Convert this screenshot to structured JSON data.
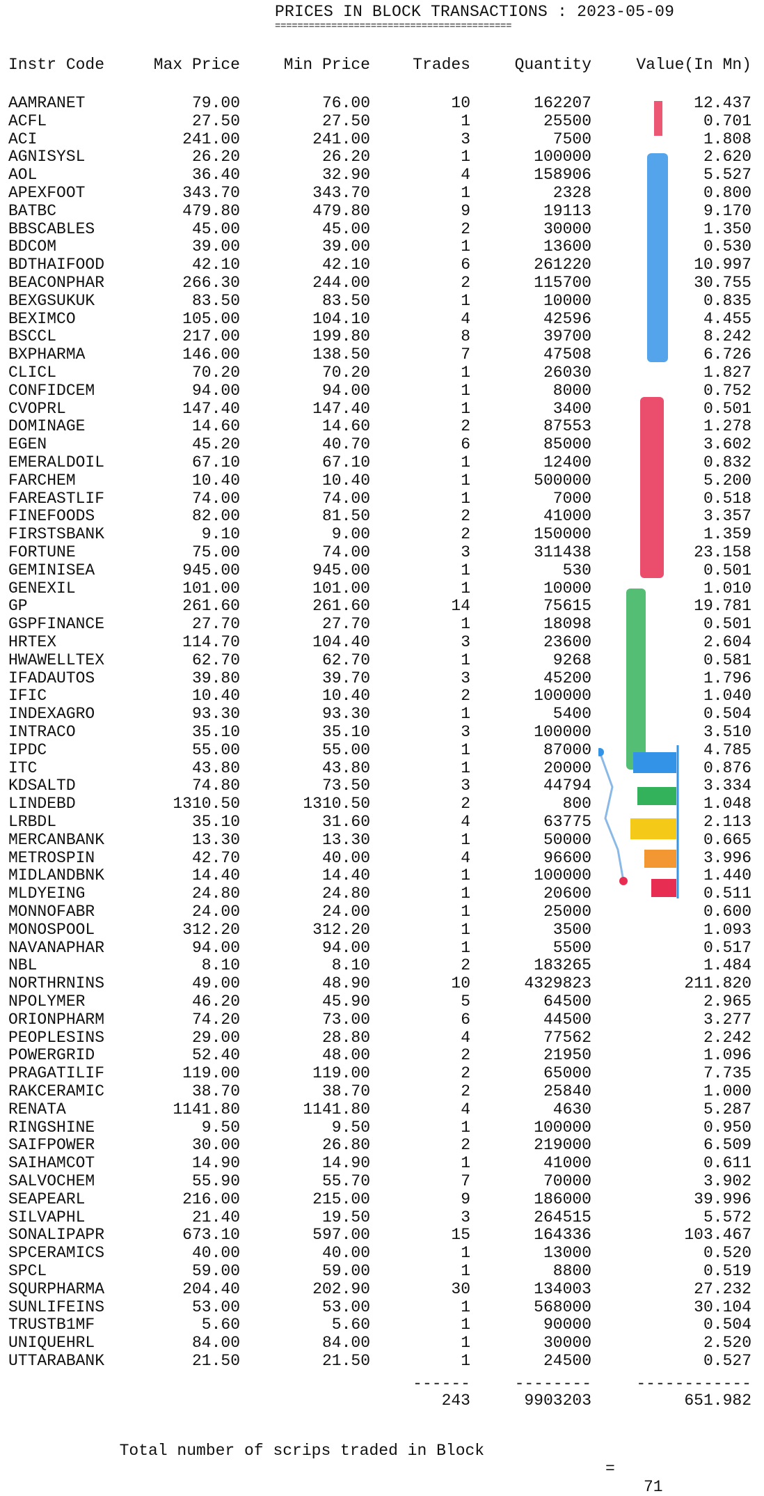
{
  "title": "PRICES IN BLOCK TRANSACTIONS : 2023-05-09",
  "title_rule": "==========================================",
  "columns": [
    "Instr Code",
    "Max Price",
    "Min Price",
    "Trades",
    "Quantity",
    "Value(In Mn)"
  ],
  "rows": [
    [
      "AAMRANET",
      "79.00",
      "76.00",
      "10",
      "162207",
      "12.437"
    ],
    [
      "ACFL",
      "27.50",
      "27.50",
      "1",
      "25500",
      "0.701"
    ],
    [
      "ACI",
      "241.00",
      "241.00",
      "3",
      "7500",
      "1.808"
    ],
    [
      "AGNISYSL",
      "26.20",
      "26.20",
      "1",
      "100000",
      "2.620"
    ],
    [
      "AOL",
      "36.40",
      "32.90",
      "4",
      "158906",
      "5.527"
    ],
    [
      "APEXFOOT",
      "343.70",
      "343.70",
      "1",
      "2328",
      "0.800"
    ],
    [
      "BATBC",
      "479.80",
      "479.80",
      "9",
      "19113",
      "9.170"
    ],
    [
      "BBSCABLES",
      "45.00",
      "45.00",
      "2",
      "30000",
      "1.350"
    ],
    [
      "BDCOM",
      "39.00",
      "39.00",
      "1",
      "13600",
      "0.530"
    ],
    [
      "BDTHAIFOOD",
      "42.10",
      "42.10",
      "6",
      "261220",
      "10.997"
    ],
    [
      "BEACONPHAR",
      "266.30",
      "244.00",
      "2",
      "115700",
      "30.755"
    ],
    [
      "BEXGSUKUK",
      "83.50",
      "83.50",
      "1",
      "10000",
      "0.835"
    ],
    [
      "BEXIMCO",
      "105.00",
      "104.10",
      "4",
      "42596",
      "4.455"
    ],
    [
      "BSCCL",
      "217.00",
      "199.80",
      "8",
      "39700",
      "8.242"
    ],
    [
      "BXPHARMA",
      "146.00",
      "138.50",
      "7",
      "47508",
      "6.726"
    ],
    [
      "CLICL",
      "70.20",
      "70.20",
      "1",
      "26030",
      "1.827"
    ],
    [
      "CONFIDCEM",
      "94.00",
      "94.00",
      "1",
      "8000",
      "0.752"
    ],
    [
      "CVOPRL",
      "147.40",
      "147.40",
      "1",
      "3400",
      "0.501"
    ],
    [
      "DOMINAGE",
      "14.60",
      "14.60",
      "2",
      "87553",
      "1.278"
    ],
    [
      "EGEN",
      "45.20",
      "40.70",
      "6",
      "85000",
      "3.602"
    ],
    [
      "EMERALDOIL",
      "67.10",
      "67.10",
      "1",
      "12400",
      "0.832"
    ],
    [
      "FARCHEM",
      "10.40",
      "10.40",
      "1",
      "500000",
      "5.200"
    ],
    [
      "FAREASTLIF",
      "74.00",
      "74.00",
      "1",
      "7000",
      "0.518"
    ],
    [
      "FINEFOODS",
      "82.00",
      "81.50",
      "2",
      "41000",
      "3.357"
    ],
    [
      "FIRSTSBANK",
      "9.10",
      "9.00",
      "2",
      "150000",
      "1.359"
    ],
    [
      "FORTUNE",
      "75.00",
      "74.00",
      "3",
      "311438",
      "23.158"
    ],
    [
      "GEMINISEA",
      "945.00",
      "945.00",
      "1",
      "530",
      "0.501"
    ],
    [
      "GENEXIL",
      "101.00",
      "101.00",
      "1",
      "10000",
      "1.010"
    ],
    [
      "GP",
      "261.60",
      "261.60",
      "14",
      "75615",
      "19.781"
    ],
    [
      "GSPFINANCE",
      "27.70",
      "27.70",
      "1",
      "18098",
      "0.501"
    ],
    [
      "HRTEX",
      "114.70",
      "104.40",
      "3",
      "23600",
      "2.604"
    ],
    [
      "HWAWELLTEX",
      "62.70",
      "62.70",
      "1",
      "9268",
      "0.581"
    ],
    [
      "IFADAUTOS",
      "39.80",
      "39.70",
      "3",
      "45200",
      "1.796"
    ],
    [
      "IFIC",
      "10.40",
      "10.40",
      "2",
      "100000",
      "1.040"
    ],
    [
      "INDEXAGRO",
      "93.30",
      "93.30",
      "1",
      "5400",
      "0.504"
    ],
    [
      "INTRACO",
      "35.10",
      "35.10",
      "3",
      "100000",
      "3.510"
    ],
    [
      "IPDC",
      "55.00",
      "55.00",
      "1",
      "87000",
      "4.785"
    ],
    [
      "ITC",
      "43.80",
      "43.80",
      "1",
      "20000",
      "0.876"
    ],
    [
      "KDSALTD",
      "74.80",
      "73.50",
      "3",
      "44794",
      "3.334"
    ],
    [
      "LINDEBD",
      "1310.50",
      "1310.50",
      "2",
      "800",
      "1.048"
    ],
    [
      "LRBDL",
      "35.10",
      "31.60",
      "4",
      "63775",
      "2.113"
    ],
    [
      "MERCANBANK",
      "13.30",
      "13.30",
      "1",
      "50000",
      "0.665"
    ],
    [
      "METROSPIN",
      "42.70",
      "40.00",
      "4",
      "96600",
      "3.996"
    ],
    [
      "MIDLANDBNK",
      "14.40",
      "14.40",
      "1",
      "100000",
      "1.440"
    ],
    [
      "MLDYEING",
      "24.80",
      "24.80",
      "1",
      "20600",
      "0.511"
    ],
    [
      "MONNOFABR",
      "24.00",
      "24.00",
      "1",
      "25000",
      "0.600"
    ],
    [
      "MONOSPOOL",
      "312.20",
      "312.20",
      "1",
      "3500",
      "1.093"
    ],
    [
      "NAVANAPHAR",
      "94.00",
      "94.00",
      "1",
      "5500",
      "0.517"
    ],
    [
      "NBL",
      "8.10",
      "8.10",
      "2",
      "183265",
      "1.484"
    ],
    [
      "NORTHRNINS",
      "49.00",
      "48.90",
      "10",
      "4329823",
      "211.820"
    ],
    [
      "NPOLYMER",
      "46.20",
      "45.90",
      "5",
      "64500",
      "2.965"
    ],
    [
      "ORIONPHARM",
      "74.20",
      "73.00",
      "6",
      "44500",
      "3.277"
    ],
    [
      "PEOPLESINS",
      "29.00",
      "28.80",
      "4",
      "77562",
      "2.242"
    ],
    [
      "POWERGRID",
      "52.40",
      "48.00",
      "2",
      "21950",
      "1.096"
    ],
    [
      "PRAGATILIF",
      "119.00",
      "119.00",
      "2",
      "65000",
      "7.735"
    ],
    [
      "RAKCERAMIC",
      "38.70",
      "38.70",
      "2",
      "25840",
      "1.000"
    ],
    [
      "RENATA",
      "1141.80",
      "1141.80",
      "4",
      "4630",
      "5.287"
    ],
    [
      "RINGSHINE",
      "9.50",
      "9.50",
      "1",
      "100000",
      "0.950"
    ],
    [
      "SAIFPOWER",
      "30.00",
      "26.80",
      "2",
      "219000",
      "6.509"
    ],
    [
      "SAIHAMCOT",
      "14.90",
      "14.90",
      "1",
      "41000",
      "0.611"
    ],
    [
      "SALVOCHEM",
      "55.90",
      "55.70",
      "7",
      "70000",
      "3.902"
    ],
    [
      "SEAPEARL",
      "216.00",
      "215.00",
      "9",
      "186000",
      "39.996"
    ],
    [
      "SILVAPHL",
      "21.40",
      "19.50",
      "3",
      "264515",
      "5.572"
    ],
    [
      "SONALIPAPR",
      "673.10",
      "597.00",
      "15",
      "164336",
      "103.467"
    ],
    [
      "SPCERAMICS",
      "40.00",
      "40.00",
      "1",
      "13000",
      "0.520"
    ],
    [
      "SPCL",
      "59.00",
      "59.00",
      "1",
      "8800",
      "0.519"
    ],
    [
      "SQURPHARMA",
      "204.40",
      "202.90",
      "30",
      "134003",
      "27.232"
    ],
    [
      "SUNLIFEINS",
      "53.00",
      "53.00",
      "1",
      "568000",
      "30.104"
    ],
    [
      "TRUSTB1MF",
      "5.60",
      "5.60",
      "1",
      "90000",
      "0.504"
    ],
    [
      "UNIQUEHRL",
      "84.00",
      "84.00",
      "1",
      "30000",
      "2.520"
    ],
    [
      "UTTARABANK",
      "21.50",
      "21.50",
      "1",
      "24500",
      "0.527"
    ]
  ],
  "totals": {
    "dashes": [
      "------",
      "--------",
      "------------"
    ],
    "trades": "243",
    "quantity": "9903203",
    "value": "651.982"
  },
  "footer": {
    "label": "Total number of scrips traded in Block",
    "eq": "=",
    "count": "71"
  },
  "watermark": {
    "colors": [
      "#1e88e5",
      "#e5173f",
      "#1faa4a",
      "#f5c400",
      "#f28c1e"
    ],
    "icon": "bar-chart-logo-icon"
  }
}
